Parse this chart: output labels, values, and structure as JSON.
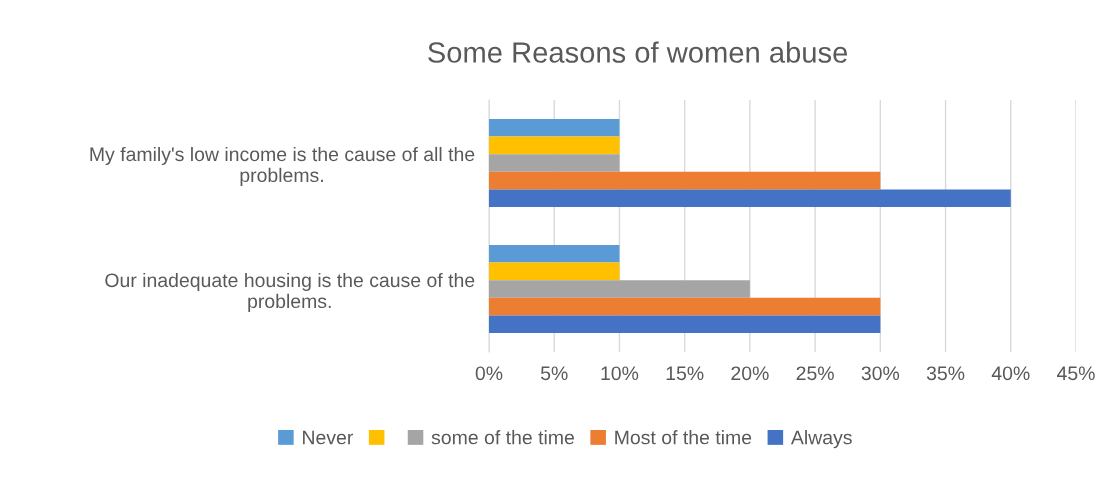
{
  "chart_data": {
    "type": "bar",
    "orientation": "horizontal",
    "title": "Some Reasons of women abuse",
    "categories": [
      "My family's low income is the cause of all the\nproblems.",
      "Our inadequate housing is the cause of the\nproblems."
    ],
    "series": [
      {
        "name": "Never",
        "color": "#5b9bd5",
        "values": [
          10,
          10
        ]
      },
      {
        "color": "#ffc000",
        "values": [
          10,
          10
        ]
      },
      {
        "name": "some of the time",
        "color": "#a5a5a5",
        "values": [
          10,
          20
        ]
      },
      {
        "name": "Most of the time",
        "color": "#ed7d31",
        "values": [
          30,
          30
        ]
      },
      {
        "name": "Always",
        "color": "#4472c4",
        "values": [
          40,
          30
        ]
      }
    ],
    "xlim": [
      0,
      45
    ],
    "xticks": [
      {
        "value": 0,
        "label": "0%"
      },
      {
        "value": 5,
        "label": "5%"
      },
      {
        "value": 10,
        "label": "10%"
      },
      {
        "value": 15,
        "label": "15%"
      },
      {
        "value": 20,
        "label": "20%"
      },
      {
        "value": 25,
        "label": "25%"
      },
      {
        "value": 30,
        "label": "30%"
      },
      {
        "value": 35,
        "label": "35%"
      },
      {
        "value": 40,
        "label": "40%"
      },
      {
        "value": 45,
        "label": "45%"
      }
    ],
    "grid": "x",
    "legend": "bottom"
  }
}
